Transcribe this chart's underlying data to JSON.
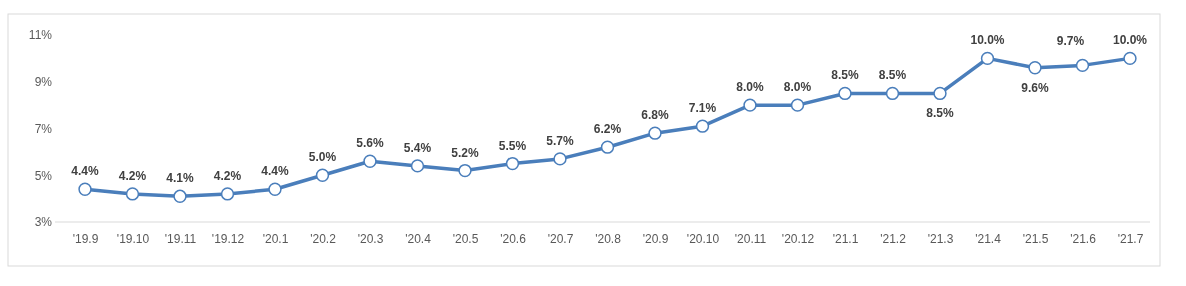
{
  "chart_data": {
    "type": "line",
    "categories": [
      "'19.9",
      "'19.10",
      "'19.11",
      "'19.12",
      "'20.1",
      "'20.2",
      "'20.3",
      "'20.4",
      "'20.5",
      "'20.6",
      "'20.7",
      "'20.8",
      "'20.9",
      "'20.10",
      "'20.11",
      "'20.12",
      "'21.1",
      "'21.2",
      "'21.3",
      "'21.4",
      "'21.5",
      "'21.6",
      "'21.7"
    ],
    "series": [
      {
        "color": "#4a7ebb",
        "values": [
          4.4,
          4.2,
          4.1,
          4.2,
          4.4,
          5.0,
          5.6,
          5.4,
          5.2,
          5.5,
          5.7,
          6.2,
          6.8,
          7.1,
          8.0,
          8.0,
          8.5,
          8.5,
          8.5,
          10.0,
          9.6,
          9.7,
          10.0
        ],
        "value_labels": [
          "4.4%",
          "4.2%",
          "4.1%",
          "4.2%",
          "4.4%",
          "5.0%",
          "5.6%",
          "5.4%",
          "5.2%",
          "5.5%",
          "5.7%",
          "6.2%",
          "6.8%",
          "7.1%",
          "8.0%",
          "8.0%",
          "8.5%",
          "8.5%",
          "8.5%",
          "10.0%",
          "9.6%",
          "9.7%",
          "10.0%"
        ]
      }
    ],
    "ylim": [
      3,
      11
    ],
    "yticks": [
      {
        "value": 3,
        "label": "3%"
      },
      {
        "value": 5,
        "label": "5%"
      },
      {
        "value": 7,
        "label": "7%"
      },
      {
        "value": 9,
        "label": "9%"
      },
      {
        "value": 11,
        "label": "11%"
      }
    ],
    "grid": false,
    "marker": "circle",
    "line_style": "solid"
  }
}
